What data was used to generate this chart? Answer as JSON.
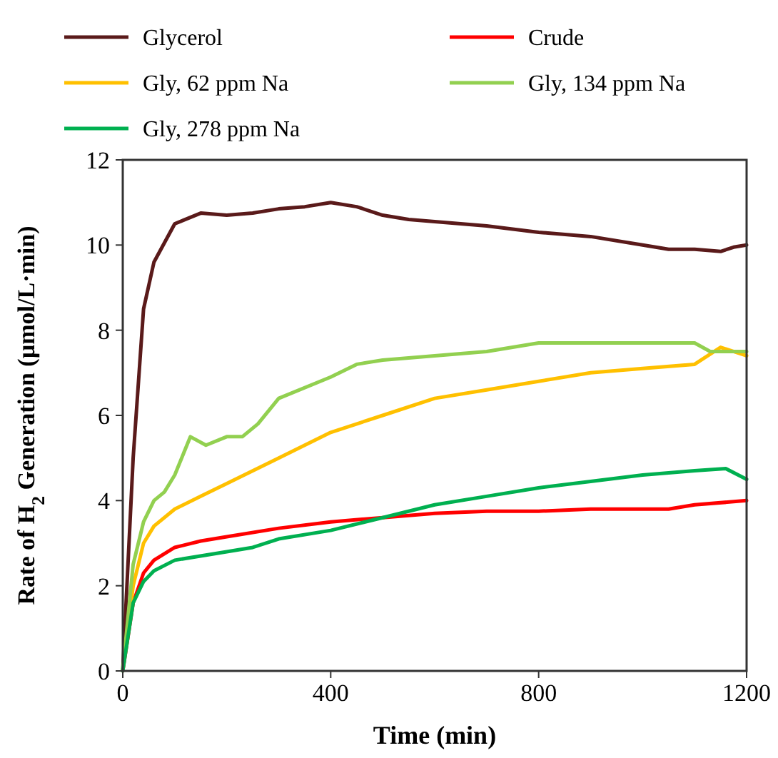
{
  "chart_data": {
    "type": "line",
    "xlabel": "Time (min)",
    "ylabel": "Rate of H$_{2}$ Generation (µmol/L·min)",
    "xlim": [
      0,
      1200
    ],
    "xticks": [
      0,
      400,
      800,
      1200
    ],
    "ylim": [
      0,
      12
    ],
    "yticks": [
      0,
      2,
      4,
      6,
      8,
      10,
      12
    ],
    "grid": false,
    "legend": "top",
    "line_style": "solid",
    "series": [
      {
        "name": "Glycerol",
        "color": "#5a1a1a",
        "x": [
          0,
          20,
          40,
          60,
          100,
          150,
          200,
          250,
          300,
          350,
          400,
          450,
          500,
          550,
          600,
          700,
          800,
          900,
          1000,
          1050,
          1100,
          1150,
          1175,
          1200
        ],
        "values": [
          0,
          5,
          8.5,
          9.6,
          10.5,
          10.75,
          10.7,
          10.75,
          10.85,
          10.9,
          11.0,
          10.9,
          10.7,
          10.6,
          10.55,
          10.45,
          10.3,
          10.2,
          10.0,
          9.9,
          9.9,
          9.85,
          9.95,
          10.0
        ]
      },
      {
        "name": "Crude",
        "color": "#ff0000",
        "x": [
          0,
          20,
          40,
          60,
          100,
          150,
          200,
          300,
          400,
          500,
          600,
          700,
          800,
          900,
          1000,
          1050,
          1100,
          1200
        ],
        "values": [
          0,
          1.6,
          2.3,
          2.6,
          2.9,
          3.05,
          3.15,
          3.35,
          3.5,
          3.6,
          3.7,
          3.75,
          3.75,
          3.8,
          3.8,
          3.8,
          3.9,
          4.0
        ]
      },
      {
        "name": "Gly, 62 ppm Na",
        "color": "#ffc000",
        "x": [
          0,
          20,
          40,
          60,
          100,
          150,
          200,
          300,
          400,
          500,
          600,
          700,
          800,
          900,
          1000,
          1100,
          1150,
          1200
        ],
        "values": [
          0,
          2.0,
          3.0,
          3.4,
          3.8,
          4.1,
          4.4,
          5.0,
          5.6,
          6.0,
          6.4,
          6.6,
          6.8,
          7.0,
          7.1,
          7.2,
          7.6,
          7.4
        ]
      },
      {
        "name": "Gly, 134 ppm Na",
        "color": "#92d050",
        "x": [
          0,
          20,
          40,
          60,
          80,
          100,
          130,
          160,
          200,
          230,
          260,
          300,
          400,
          450,
          500,
          600,
          700,
          800,
          900,
          1000,
          1100,
          1130,
          1200
        ],
        "values": [
          0,
          2.5,
          3.5,
          4.0,
          4.2,
          4.6,
          5.5,
          5.3,
          5.5,
          5.5,
          5.8,
          6.4,
          6.9,
          7.2,
          7.3,
          7.4,
          7.5,
          7.7,
          7.7,
          7.7,
          7.7,
          7.5,
          7.5
        ]
      },
      {
        "name": "Gly, 278 ppm Na",
        "color": "#00b050",
        "x": [
          0,
          20,
          40,
          60,
          100,
          200,
          250,
          300,
          400,
          500,
          600,
          700,
          800,
          900,
          1000,
          1100,
          1160,
          1200
        ],
        "values": [
          0,
          1.6,
          2.1,
          2.35,
          2.6,
          2.8,
          2.9,
          3.1,
          3.3,
          3.6,
          3.9,
          4.1,
          4.3,
          4.45,
          4.6,
          4.7,
          4.75,
          4.5
        ]
      }
    ]
  }
}
